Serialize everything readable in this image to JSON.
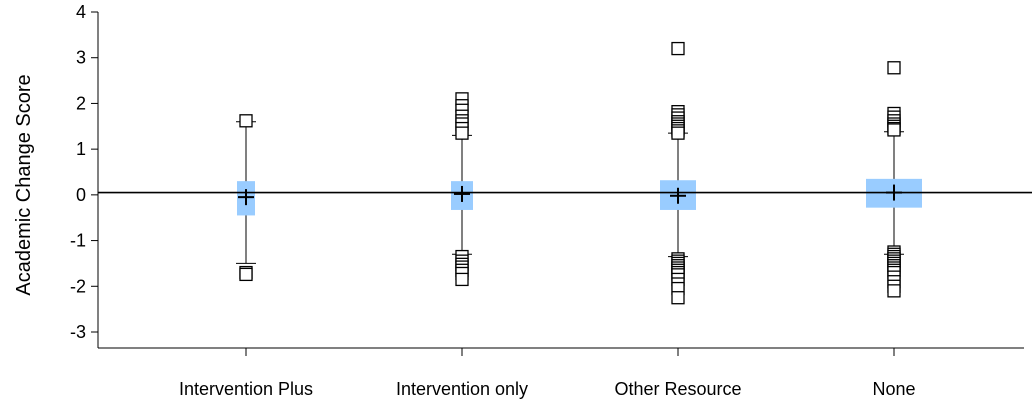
{
  "chart_data": {
    "type": "box",
    "title": "",
    "xlabel": "",
    "ylabel": "Academic Change Score",
    "ylim": [
      -3.35,
      4.0
    ],
    "yticks": [
      4,
      3,
      2,
      1,
      0,
      -1,
      -2,
      -3
    ],
    "ytick_labels": [
      "4",
      "3",
      "2",
      "1",
      "0",
      "-1",
      "-2",
      "-3"
    ],
    "reference_line": 0.05,
    "grid": false,
    "legend": "none",
    "colors": {
      "box": "#99ccff",
      "outlier": "#000000",
      "line": "#000000"
    },
    "categories": [
      "Intervention Plus",
      "Intervention only",
      "Other Resource",
      "None"
    ],
    "groups": [
      {
        "category": "Intervention Plus",
        "q1": -0.45,
        "q3": 0.3,
        "median": -0.05,
        "mean": -0.05,
        "whisker_low": -1.5,
        "whisker_high": 1.6,
        "outliers": [
          1.62,
          -1.7,
          -1.74
        ]
      },
      {
        "category": "Intervention only",
        "q1": -0.33,
        "q3": 0.3,
        "median": 0.02,
        "mean": 0.02,
        "whisker_low": -1.3,
        "whisker_high": 1.3,
        "outliers": [
          2.1,
          1.95,
          1.85,
          1.72,
          1.62,
          1.55,
          1.45,
          1.35,
          -1.35,
          -1.45,
          -1.52,
          -1.58,
          -1.65,
          -1.72,
          -1.85
        ]
      },
      {
        "category": "Other Resource",
        "q1": -0.33,
        "q3": 0.32,
        "median": -0.02,
        "mean": -0.02,
        "whisker_low": -1.35,
        "whisker_high": 1.35,
        "outliers": [
          3.2,
          1.82,
          1.75,
          1.68,
          1.6,
          1.55,
          1.5,
          1.45,
          1.4,
          1.35,
          -1.4,
          -1.45,
          -1.5,
          -1.55,
          -1.6,
          -1.65,
          -1.7,
          -1.75,
          -1.85,
          -1.95,
          -2.05,
          -2.25
        ]
      },
      {
        "category": "None",
        "q1": -0.28,
        "q3": 0.35,
        "median": 0.05,
        "mean": 0.05,
        "whisker_low": -1.3,
        "whisker_high": 1.38,
        "outliers": [
          2.78,
          1.78,
          1.7,
          1.62,
          1.55,
          1.5,
          1.45,
          1.42,
          -1.25,
          -1.3,
          -1.35,
          -1.4,
          -1.45,
          -1.5,
          -1.55,
          -1.6,
          -1.65,
          -1.7,
          -1.8,
          -1.9,
          -2.0,
          -2.1
        ]
      }
    ]
  }
}
